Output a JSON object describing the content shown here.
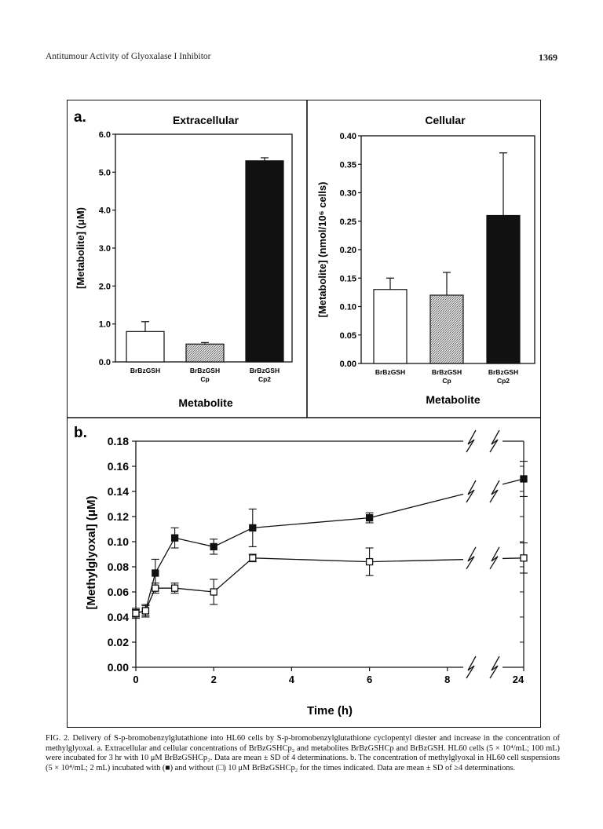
{
  "header": {
    "running_title": "Antitumour Activity of Glyoxalase I Inhibitor",
    "page_number": "1369"
  },
  "chart_data": [
    {
      "panel": "a.",
      "type": "bar",
      "title": "Extracellular",
      "xlabel": "Metabolite",
      "ylabel": "[Metabolite] (μM)",
      "categories": [
        [
          "BrBzGSH"
        ],
        [
          "BrBzGSH",
          "Cp"
        ],
        [
          "BrBzGSH",
          "Cp2"
        ]
      ],
      "values": [
        0.8,
        0.47,
        5.3
      ],
      "errors": [
        0.26,
        0.04,
        0.08
      ],
      "fills": [
        "white",
        "stipple",
        "black"
      ],
      "ylim": [
        0,
        6
      ],
      "yticks": [
        "0.0",
        "1.0",
        "2.0",
        "3.0",
        "4.0",
        "5.0",
        "6.0"
      ]
    },
    {
      "panel": "",
      "type": "bar",
      "title": "Cellular",
      "xlabel": "Metabolite",
      "ylabel": "[Metabolite] (nmol/10⁶ cells)",
      "categories": [
        [
          "BrBzGSH"
        ],
        [
          "BrBzGSH",
          "Cp"
        ],
        [
          "BrBzGSH",
          "Cp2"
        ]
      ],
      "values": [
        0.13,
        0.12,
        0.26
      ],
      "errors": [
        0.02,
        0.04,
        0.11
      ],
      "fills": [
        "white",
        "stipple",
        "black"
      ],
      "ylim": [
        0,
        0.4
      ],
      "yticks": [
        "0.00",
        "0.05",
        "0.10",
        "0.15",
        "0.20",
        "0.25",
        "0.30",
        "0.35",
        "0.40"
      ]
    },
    {
      "panel": "b.",
      "type": "line",
      "xlabel": "Time (h)",
      "ylabel": "[Methylglyoxal] (μM)",
      "ylim": [
        0,
        0.18
      ],
      "yticks": [
        "0.00",
        "0.02",
        "0.04",
        "0.06",
        "0.08",
        "0.10",
        "0.12",
        "0.14",
        "0.16",
        "0.18"
      ],
      "xticks": [
        "0",
        "2",
        "4",
        "6",
        "8",
        "24"
      ],
      "axis_break": "between 8 and 24 h",
      "series": [
        {
          "marker": "filled-square",
          "x": [
            0,
            0.25,
            0.5,
            1,
            2,
            3,
            6,
            24
          ],
          "y": [
            0.043,
            0.045,
            0.075,
            0.103,
            0.096,
            0.111,
            0.119,
            0.15
          ],
          "err": [
            0.004,
            0.005,
            0.011,
            0.008,
            0.006,
            0.015,
            0.004,
            0.014
          ]
        },
        {
          "marker": "open-square",
          "x": [
            0,
            0.25,
            0.5,
            1,
            2,
            3,
            6,
            24
          ],
          "y": [
            0.043,
            0.045,
            0.063,
            0.063,
            0.06,
            0.087,
            0.084,
            0.087
          ],
          "err": [
            0.003,
            0.004,
            0.004,
            0.004,
            0.01,
            0.003,
            0.011,
            0.012
          ]
        }
      ]
    }
  ],
  "caption": {
    "label": "FIG. 2.",
    "text": " Delivery of S-p-bromobenzylglutathione into HL60 cells by S-p-bromobenzylglutathione cyclopentyl diester and increase in the concentration of methylglyoxal. a. Extracellular and cellular concentrations of BrBzGSHCp₂ and metabolites BrBzGSHCp and BrBzGSH. HL60 cells (5 × 10⁴/mL; 100 mL) were incubated for 3 hr with 10 μM BrBzGSHCp₂. Data are mean ± SD of 4 determinations. b. The concentration of methylglyoxal in HL60 cell suspensions (5 × 10⁴/mL; 2 mL) incubated with (■) and without (□) 10 μM BrBzGSHCp₂ for the times indicated. Data are mean ± SD of ≥4 determinations."
  }
}
